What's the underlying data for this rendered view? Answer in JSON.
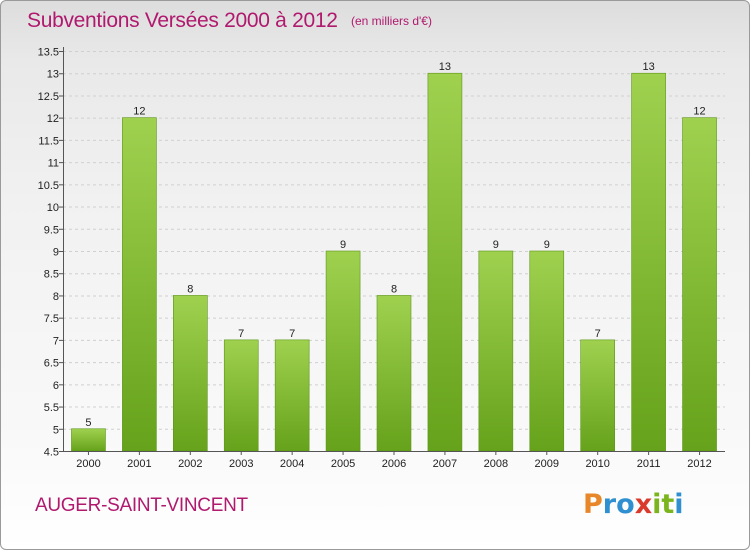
{
  "title": "Subventions Versées 2000 à 2012",
  "subtitle": "(en milliers d'€)",
  "town": "AUGER-SAINT-VINCENT",
  "logo": {
    "letters": [
      "P",
      "r",
      "o",
      "x",
      "i",
      "t",
      "i"
    ],
    "colors": [
      "#e8862a",
      "#2f8fd0",
      "#2f8fd0",
      "#d93a2b",
      "#7ab51d",
      "#7ab51d",
      "#2f8fd0"
    ]
  },
  "colors": {
    "accent": "#b0196e",
    "bar_light": "#9fd14f",
    "bar_dark": "#66a21b"
  },
  "chart_data": {
    "type": "bar",
    "title": "Subventions Versées 2000 à 2012",
    "subtitle": "(en milliers d'€)",
    "categories": [
      "2000",
      "2001",
      "2002",
      "2003",
      "2004",
      "2005",
      "2006",
      "2007",
      "2008",
      "2009",
      "2010",
      "2011",
      "2012"
    ],
    "values": [
      5,
      12,
      8,
      7,
      7,
      9,
      8,
      13,
      9,
      9,
      7,
      13,
      12
    ],
    "ylim": [
      4.5,
      13.5
    ],
    "yticks": [
      "4.5",
      "5",
      "5.5",
      "6",
      "6.5",
      "7",
      "7.5",
      "8",
      "8.5",
      "9",
      "9.5",
      "10",
      "10.5",
      "11",
      "11.5",
      "12",
      "12.5",
      "13",
      "13.5"
    ],
    "grid": true,
    "legend": "none"
  }
}
